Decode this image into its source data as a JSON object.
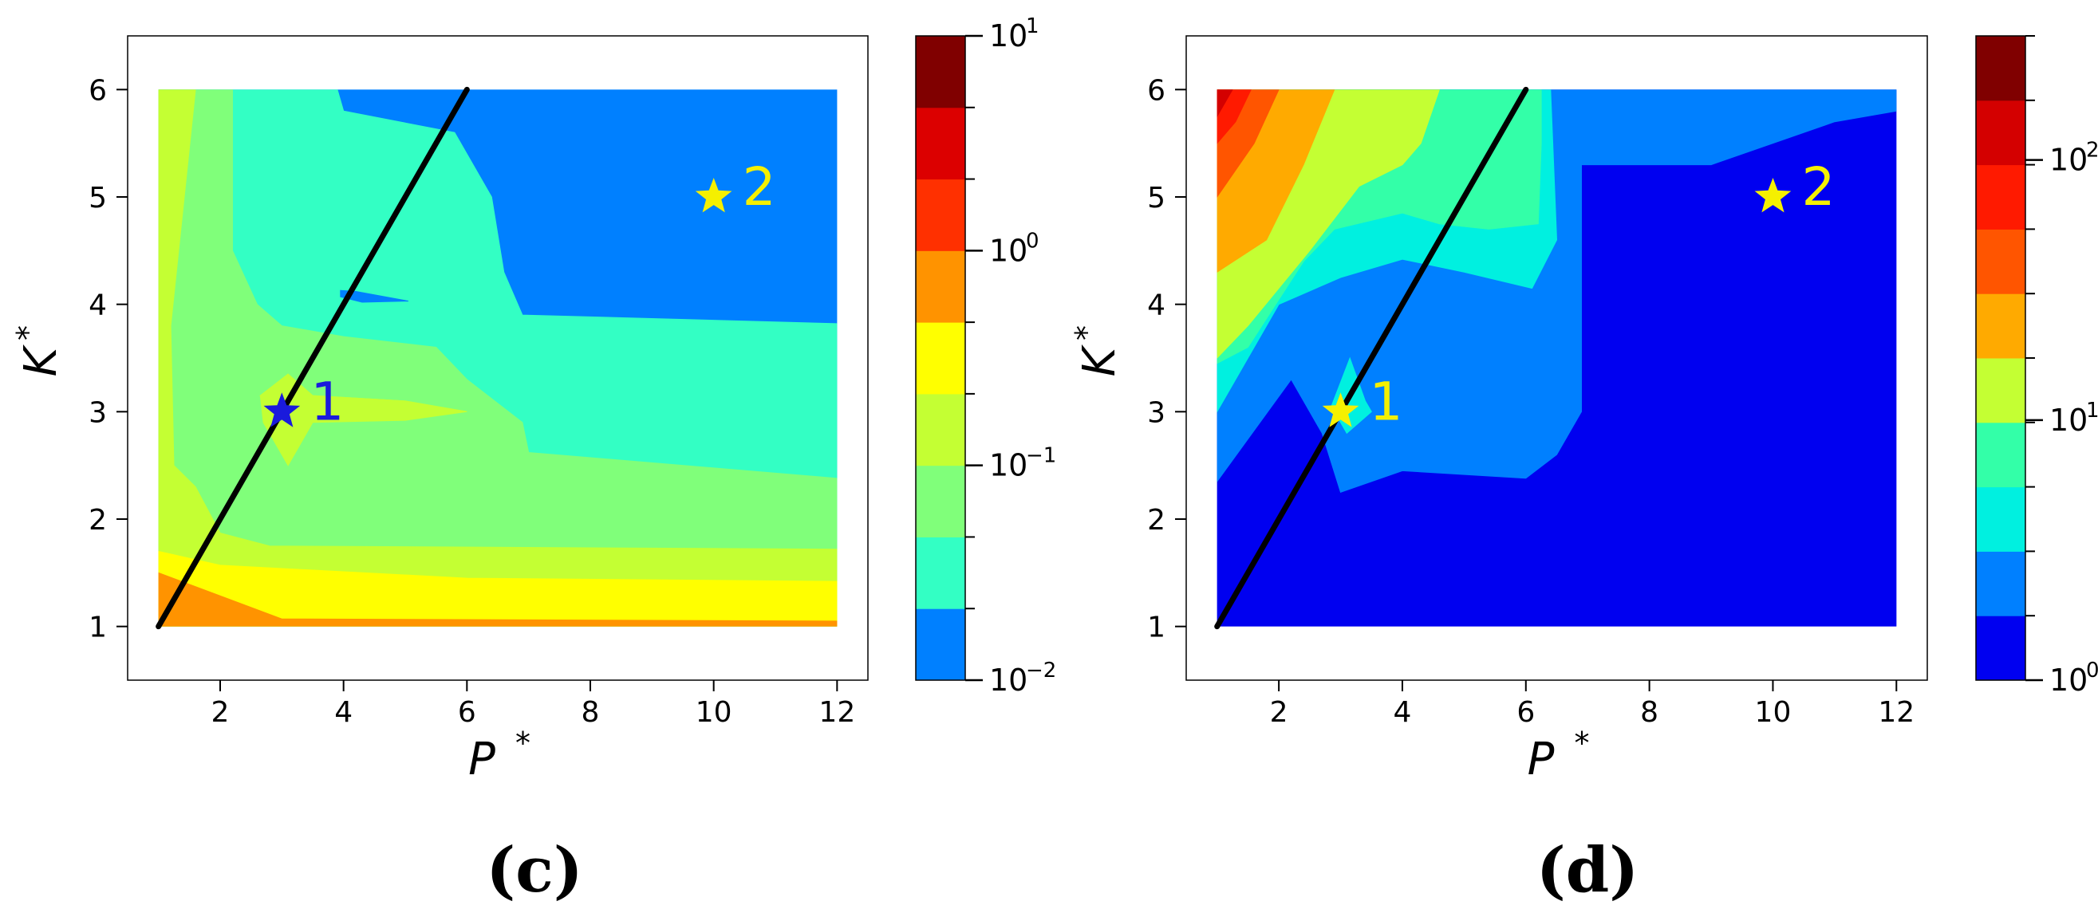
{
  "chart_data": [
    {
      "type": "heatmap",
      "panel_label": "(c)",
      "xlabel": "P",
      "xlabel_sup": "*",
      "ylabel": "K",
      "ylabel_sup": "*",
      "xlim": [
        0.5,
        12.5
      ],
      "ylim": [
        0.5,
        6.5
      ],
      "xticks": [
        "2",
        "4",
        "6",
        "8",
        "10",
        "12"
      ],
      "yticks": [
        "1",
        "2",
        "3",
        "4",
        "5",
        "6"
      ],
      "colorbar": {
        "scale": "log",
        "range": [
          0.01,
          10
        ],
        "major_labels": [
          {
            "base": "10",
            "exp": "1",
            "value": 10
          },
          {
            "base": "10",
            "exp": "0",
            "value": 1
          },
          {
            "base": "10",
            "exp": "−1",
            "value": 0.1
          },
          {
            "base": "10",
            "exp": "−2",
            "value": 0.01
          }
        ],
        "colors": [
          "#0080ff",
          "#33ffc4",
          "#80ff7a",
          "#c4ff33",
          "#ffff00",
          "#ff9300",
          "#ff3000",
          "#dc0000",
          "#800000"
        ]
      },
      "regions": [
        {
          "level": 0,
          "points": [
            [
              1,
              1
            ],
            [
              12,
              1
            ],
            [
              12,
              6
            ],
            [
              1,
              6
            ]
          ]
        },
        {
          "level": 1,
          "points": [
            [
              1,
              1
            ],
            [
              12,
              1
            ],
            [
              12,
              3.82
            ],
            [
              6.9,
              3.9
            ],
            [
              6.6,
              4.3
            ],
            [
              6.4,
              5
            ],
            [
              5.8,
              5.6
            ],
            [
              4,
              5.8
            ],
            [
              3.9,
              6
            ],
            [
              1,
              6
            ]
          ]
        },
        {
          "level": 2,
          "points": [
            [
              1,
              1
            ],
            [
              12,
              1
            ],
            [
              12,
              2.38
            ],
            [
              7,
              2.62
            ],
            [
              6.9,
              2.9
            ],
            [
              6,
              3.3
            ],
            [
              5.5,
              3.6
            ],
            [
              4,
              3.7
            ],
            [
              3,
              3.8
            ],
            [
              2.6,
              4
            ],
            [
              2.2,
              4.5
            ],
            [
              2.2,
              6
            ],
            [
              1,
              6
            ]
          ]
        },
        {
          "level": 3,
          "points": [
            [
              1,
              1
            ],
            [
              12,
              1
            ],
            [
              12,
              1.72
            ],
            [
              2.8,
              1.75
            ],
            [
              2,
              1.87
            ],
            [
              1.6,
              2.3
            ],
            [
              1.25,
              2.5
            ],
            [
              1.2,
              3.8
            ],
            [
              1.6,
              6
            ],
            [
              1,
              6
            ]
          ]
        },
        {
          "level": 3,
          "points": [
            [
              2.65,
              3.15
            ],
            [
              3.1,
              3.35
            ],
            [
              3.5,
              3.15
            ],
            [
              5,
              3.1
            ],
            [
              6,
              3
            ]
          ]
        },
        {
          "level": 3,
          "points": [
            [
              2.65,
              3.15
            ],
            [
              3.1,
              3.35
            ],
            [
              3.5,
              3.15
            ],
            [
              5,
              3.1
            ],
            [
              6,
              3
            ],
            [
              5,
              2.92
            ],
            [
              3.5,
              2.9
            ],
            [
              3.1,
              2.5
            ],
            [
              2.7,
              2.9
            ]
          ]
        },
        {
          "level": 4,
          "points": [
            [
              1,
              1
            ],
            [
              12,
              1
            ],
            [
              12,
              1.42
            ],
            [
              6,
              1.45
            ],
            [
              2,
              1.57
            ],
            [
              1,
              1.7
            ]
          ]
        },
        {
          "level": 5,
          "points": [
            [
              1,
              1
            ],
            [
              12,
              1
            ],
            [
              12,
              1.05
            ],
            [
              3,
              1.07
            ],
            [
              1,
              1.5
            ]
          ]
        },
        {
          "level": 0,
          "points": [
            [
              3.95,
              4.13
            ],
            [
              4.2,
              4.12
            ],
            [
              5.05,
              4.03
            ],
            [
              4.3,
              4.02
            ],
            [
              3.95,
              4.07
            ]
          ]
        }
      ],
      "line": {
        "x": [
          1,
          6
        ],
        "y": [
          1,
          6
        ]
      },
      "stars": [
        {
          "label": "1",
          "x": 3,
          "y": 3,
          "color": "#1a1adc"
        },
        {
          "label": "2",
          "x": 10,
          "y": 5,
          "color": "#f5f000"
        }
      ]
    },
    {
      "type": "heatmap",
      "panel_label": "(d)",
      "xlabel": "P",
      "xlabel_sup": "*",
      "ylabel": "K",
      "ylabel_sup": "*",
      "xlim": [
        0.5,
        12.5
      ],
      "ylim": [
        0.5,
        6.5
      ],
      "xticks": [
        "2",
        "4",
        "6",
        "8",
        "10",
        "12"
      ],
      "yticks": [
        "1",
        "2",
        "3",
        "4",
        "5",
        "6"
      ],
      "colorbar": {
        "scale": "log",
        "range": [
          1,
          300
        ],
        "major_labels": [
          {
            "base": "10",
            "exp": "2",
            "value": 100
          },
          {
            "base": "10",
            "exp": "1",
            "value": 10
          },
          {
            "base": "10",
            "exp": "0",
            "value": 1
          }
        ],
        "colors": [
          "#0000f0",
          "#0080ff",
          "#00f0e0",
          "#33ffa8",
          "#c4ff33",
          "#ffaa00",
          "#ff5500",
          "#ff1a00",
          "#d40000",
          "#800000"
        ]
      },
      "regions": [
        {
          "level": 0,
          "points": [
            [
              1,
              1
            ],
            [
              12,
              1
            ],
            [
              12,
              6
            ],
            [
              1,
              6
            ]
          ]
        },
        {
          "level": 1,
          "points": [
            [
              1,
              6
            ],
            [
              12,
              6
            ],
            [
              12,
              5.8
            ],
            [
              11,
              5.7
            ],
            [
              10,
              5.5
            ],
            [
              9,
              5.3
            ],
            [
              7,
              5.3
            ],
            [
              6.9,
              5.3
            ],
            [
              6.9,
              3
            ],
            [
              6.5,
              2.6
            ],
            [
              6,
              2.38
            ],
            [
              4,
              2.45
            ],
            [
              3,
              2.25
            ],
            [
              2.7,
              2.8
            ],
            [
              2.2,
              3.3
            ],
            [
              1,
              2.35
            ]
          ]
        },
        {
          "level": 2,
          "points": [
            [
              1,
              6
            ],
            [
              6.4,
              6
            ],
            [
              6.5,
              4.6
            ],
            [
              6.1,
              4.15
            ],
            [
              5,
              4.3
            ],
            [
              4,
              4.42
            ],
            [
              3,
              4.25
            ],
            [
              2,
              4
            ],
            [
              1.5,
              3.5
            ],
            [
              1,
              3
            ]
          ]
        },
        {
          "level": 2,
          "points": [
            [
              2.85,
              3.05
            ],
            [
              3.15,
              3.5
            ],
            [
              3.4,
              3.1
            ],
            [
              3.5,
              3
            ],
            [
              3.1,
              2.8
            ]
          ]
        },
        {
          "level": 3,
          "points": [
            [
              1,
              6
            ],
            [
              6.25,
              6
            ],
            [
              6.25,
              5.5
            ],
            [
              6.2,
              4.75
            ],
            [
              5.4,
              4.7
            ],
            [
              4.6,
              4.75
            ],
            [
              4,
              4.85
            ],
            [
              2.9,
              4.7
            ],
            [
              2.4,
              4.4
            ],
            [
              1.5,
              3.6
            ],
            [
              1,
              3.45
            ]
          ]
        },
        {
          "level": 4,
          "points": [
            [
              1,
              6
            ],
            [
              4.6,
              6
            ],
            [
              4.3,
              5.5
            ],
            [
              4,
              5.3
            ],
            [
              3.3,
              5.1
            ],
            [
              2.5,
              4.5
            ],
            [
              1.5,
              3.8
            ],
            [
              1,
              3.5
            ]
          ]
        },
        {
          "level": 5,
          "points": [
            [
              1,
              6
            ],
            [
              2.9,
              6
            ],
            [
              2.4,
              5.3
            ],
            [
              1.8,
              4.6
            ],
            [
              1,
              4.3
            ]
          ]
        },
        {
          "level": 6,
          "points": [
            [
              1,
              6
            ],
            [
              2,
              6
            ],
            [
              1.6,
              5.5
            ],
            [
              1,
              5
            ]
          ]
        },
        {
          "level": 7,
          "points": [
            [
              1,
              6
            ],
            [
              1.55,
              6
            ],
            [
              1.3,
              5.7
            ],
            [
              1,
              5.5
            ]
          ]
        },
        {
          "level": 8,
          "points": [
            [
              1,
              6
            ],
            [
              1.25,
              6
            ],
            [
              1,
              5.75
            ]
          ]
        }
      ],
      "line": {
        "x": [
          1,
          6
        ],
        "y": [
          1,
          6
        ]
      },
      "stars": [
        {
          "label": "1",
          "x": 3,
          "y": 3,
          "color": "#f5f000"
        },
        {
          "label": "2",
          "x": 10,
          "y": 5,
          "color": "#f5f000"
        }
      ]
    }
  ]
}
